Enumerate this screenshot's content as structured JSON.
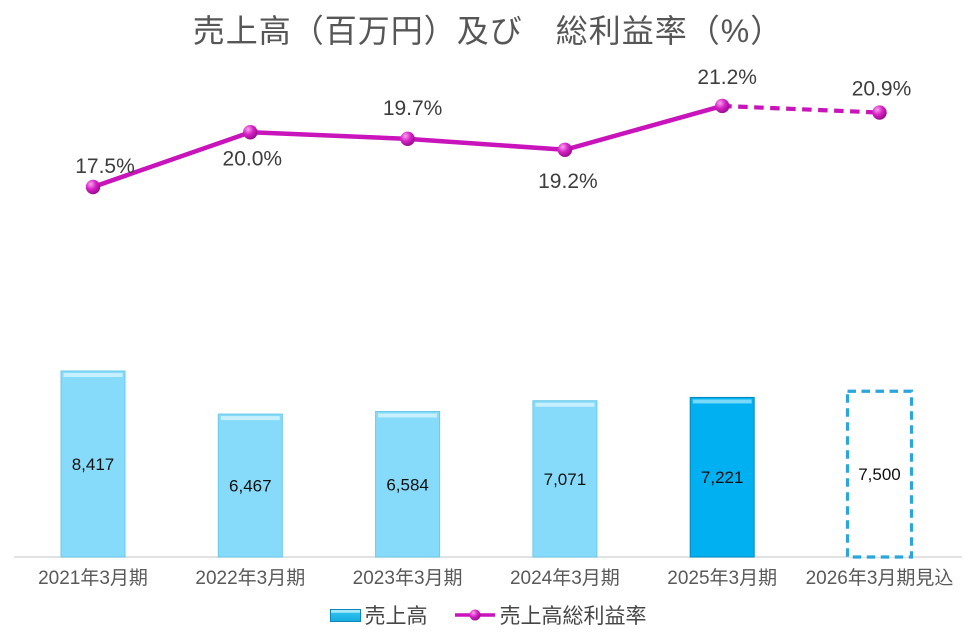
{
  "chart": {
    "title": "売上高（百万円）及び　総利益率（%）",
    "legend": {
      "bar_label": "売上高",
      "line_label": "売上高総利益率"
    }
  },
  "chart_data": {
    "type": "combo: bar + line",
    "title": "売上高（百万円）及び　総利益率（%）",
    "categories": [
      "2021年3月期",
      "2022年3月期",
      "2023年3月期",
      "2024年3月期",
      "2025年3月期",
      "2026年3月期見込"
    ],
    "series": [
      {
        "name": "売上高",
        "type": "bar",
        "unit": "百万円",
        "values": [
          8417,
          6467,
          6584,
          7071,
          7221,
          7500
        ],
        "data_labels": [
          "8,417",
          "6,467",
          "6,584",
          "7,071",
          "7,221",
          "7,500"
        ],
        "bar_styles": [
          "normal",
          "normal",
          "normal",
          "normal",
          "highlight",
          "forecast-dashed-outline"
        ]
      },
      {
        "name": "売上高総利益率",
        "type": "line",
        "unit": "%",
        "values": [
          17.5,
          20.0,
          19.7,
          19.2,
          21.2,
          20.9
        ],
        "data_labels": [
          "17.5%",
          "20.0%",
          "19.7%",
          "19.2%",
          "21.2%",
          "20.9%"
        ],
        "label_placements": [
          "above",
          "below",
          "above",
          "below",
          "above",
          "above"
        ],
        "dashed_segment": "2025年3月期 → 2026年3月期見込 (forecast)"
      }
    ],
    "xlabel": "",
    "ylabel": "",
    "grid": false,
    "value_axis_visible": false,
    "legend_position": "bottom",
    "colors": {
      "bar": "#87DBFA",
      "bar_border": "#6BC8E8",
      "bar_highlight": "#00B0F0",
      "bar_highlight_border": "#0089BE",
      "bar_forecast_outline": "#2BA6DC",
      "line": "#C913BB",
      "axis": "#D9D9D9",
      "text": "#595959",
      "label_text": "#3D3D3D",
      "value_text": "#101010",
      "title_text": "#565656"
    }
  }
}
